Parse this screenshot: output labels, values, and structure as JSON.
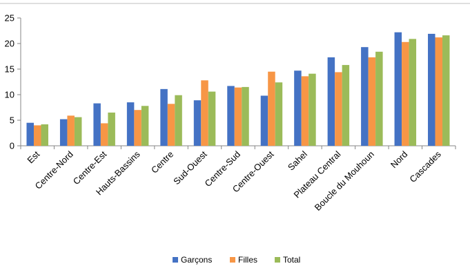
{
  "chart_data": {
    "type": "bar",
    "categories": [
      "Est",
      "Centre-Nord",
      "Centre-Est",
      "Hauts-Bassins",
      "Centre",
      "Sud-Ouest",
      "Centre-Sud",
      "Centre-Ouest",
      "Sahel",
      "Plateau Central",
      "Boucle du Mouhoun",
      "Nord",
      "Cascades"
    ],
    "series": [
      {
        "name": "Garçons",
        "color": "#4472C4",
        "values": [
          4.5,
          5.2,
          8.3,
          8.5,
          11.1,
          8.9,
          11.7,
          9.8,
          14.7,
          17.3,
          19.3,
          22.2,
          21.9
        ]
      },
      {
        "name": "Filles",
        "color": "#F79646",
        "values": [
          4.0,
          5.9,
          4.4,
          7.0,
          8.2,
          12.8,
          11.4,
          14.5,
          13.6,
          14.4,
          17.3,
          20.3,
          21.2
        ]
      },
      {
        "name": "Total",
        "color": "#9BBB59",
        "values": [
          4.2,
          5.6,
          6.5,
          7.8,
          9.9,
          10.6,
          11.5,
          12.4,
          14.1,
          15.8,
          18.4,
          20.9,
          21.6
        ]
      }
    ],
    "yticks": [
      "0",
      "5",
      "10",
      "15",
      "20",
      "25"
    ],
    "ylim": [
      0,
      25
    ],
    "grid": false,
    "legend": "bottom"
  }
}
